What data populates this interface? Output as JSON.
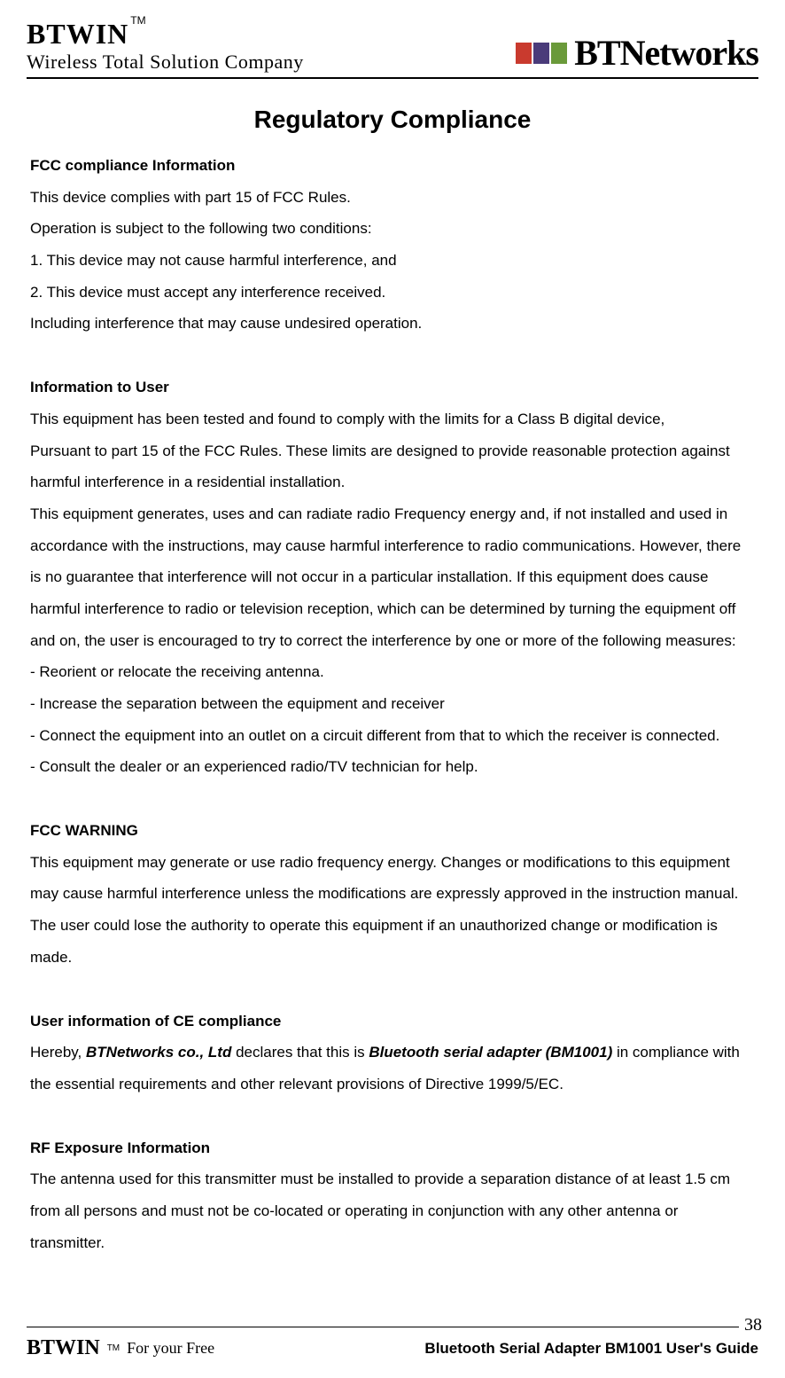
{
  "header": {
    "logo_text": "BTWIN",
    "tm": "TM",
    "tagline": "Wireless Total Solution Company",
    "right_logo": "BTNetworks",
    "block_colors": [
      "#c93a2e",
      "#4a3b7a",
      "#6a9a3a"
    ]
  },
  "title": "Regulatory Compliance",
  "sections": {
    "fcc_compliance": {
      "heading": "FCC compliance Information",
      "lines": [
        "This device complies with part 15 of FCC Rules.",
        "Operation is subject to the following two conditions:",
        "1. This device may not cause harmful interference, and",
        "2. This device must accept any interference received.",
        "Including interference that may cause undesired operation."
      ]
    },
    "info_user": {
      "heading": "Information to User",
      "lines": [
        "This equipment has been tested and found to comply with the limits for a Class B digital device,",
        "Pursuant to part 15 of the FCC Rules. These limits are designed to provide reasonable protection against harmful interference in a residential installation.",
        "This equipment generates, uses and can radiate radio Frequency energy and, if not installed and used in accordance with the instructions, may cause harmful interference to radio communications. However, there is no guarantee that interference will not occur in a particular installation. If this equipment does cause harmful interference to radio or television reception, which can be determined by turning the equipment off and on, the user is encouraged to try to correct the interference by one or more of the following measures:",
        "- Reorient or relocate the receiving antenna.",
        "- Increase the separation between the equipment and receiver",
        "- Connect the equipment into an outlet on a circuit different from that to which the receiver is connected.",
        "- Consult the dealer or an experienced radio/TV technician for help."
      ]
    },
    "fcc_warning": {
      "heading": "FCC WARNING",
      "lines": [
        "This equipment may generate or use radio frequency energy. Changes or modifications to this equipment may cause harmful interference unless the modifications are expressly approved in the instruction manual. The user could lose the authority to operate this equipment if an unauthorized change or modification is made."
      ]
    },
    "ce_compliance": {
      "heading": "User information of CE compliance",
      "prefix": "Hereby, ",
      "bold1": "BTNetworks co., Ltd",
      "mid": " declares that this is ",
      "bold2": "Bluetooth serial adapter (BM1001)",
      "suffix": " in compliance with the essential requirements and other relevant provisions of Directive 1999/5/EC."
    },
    "rf_exposure": {
      "heading": "RF Exposure Information",
      "lines": [
        "The antenna used for this transmitter must be installed to provide a separation distance of at least 1.5 cm from all persons and must not be co-located or operating in conjunction with any other antenna or transmitter."
      ]
    }
  },
  "footer": {
    "page_number": "38",
    "logo_text": "BTWIN",
    "tm": "TM",
    "tag": "For your Free",
    "right_text": "Bluetooth Serial Adapter BM1001 User's Guide"
  },
  "styles": {
    "background_color": "#ffffff",
    "text_color": "#000000",
    "title_fontsize": 28,
    "body_fontsize": 17,
    "line_height": 2.1
  }
}
